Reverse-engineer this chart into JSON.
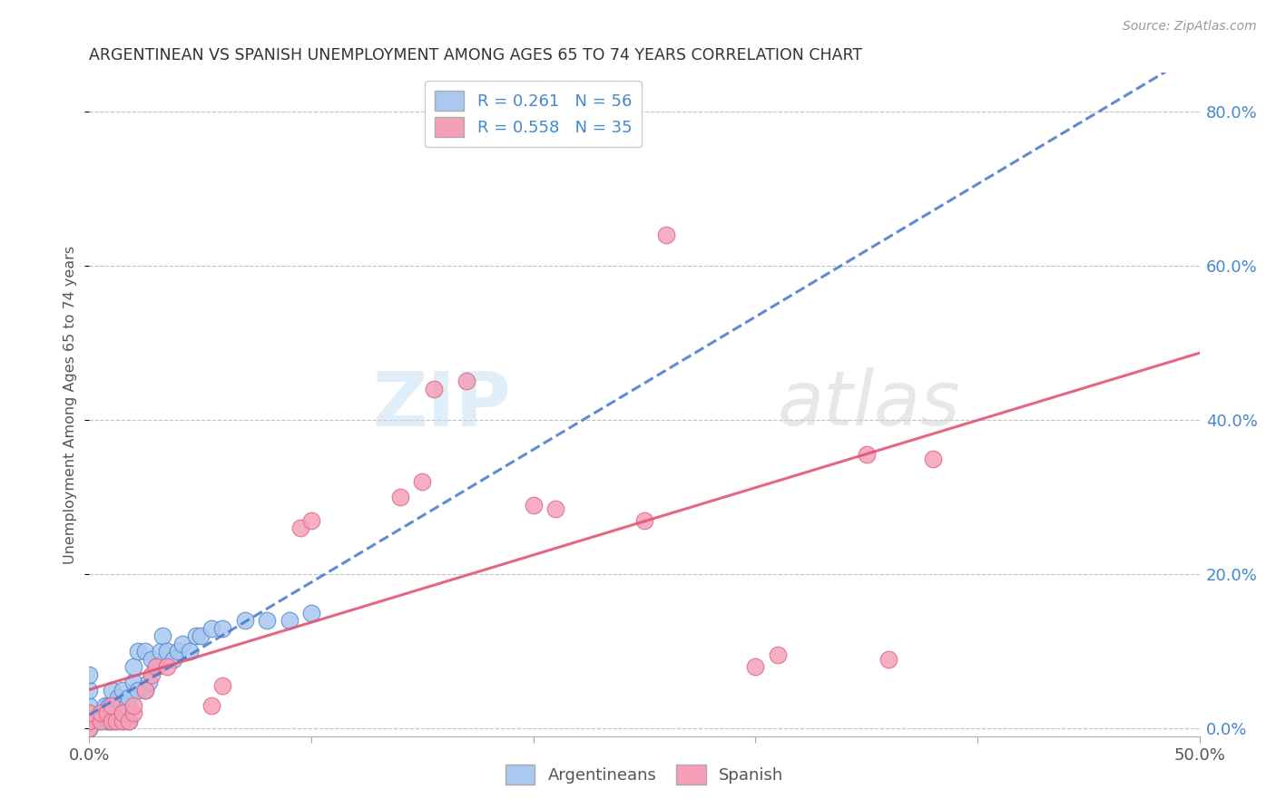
{
  "title": "ARGENTINEAN VS SPANISH UNEMPLOYMENT AMONG AGES 65 TO 74 YEARS CORRELATION CHART",
  "source": "Source: ZipAtlas.com",
  "ylabel": "Unemployment Among Ages 65 to 74 years",
  "ylabel_right_ticks": [
    "80.0%",
    "60.0%",
    "40.0%",
    "20.0%",
    "0.0%"
  ],
  "ylabel_right_vals": [
    0.8,
    0.6,
    0.4,
    0.2,
    0.0
  ],
  "xlim": [
    0.0,
    0.5
  ],
  "ylim": [
    -0.01,
    0.85
  ],
  "argentinean_color": "#aac8f0",
  "argentinean_edge": "#5588cc",
  "spanish_color": "#f5a0b8",
  "spanish_edge": "#dd6688",
  "R_argentinean": 0.261,
  "N_argentinean": 56,
  "R_spanish": 0.558,
  "N_spanish": 35,
  "line_argentinean_color": "#4477cc",
  "line_spanish_color": "#e05575",
  "argentinean_x": [
    0.0,
    0.0,
    0.0,
    0.0,
    0.0,
    0.0,
    0.0,
    0.0,
    0.0,
    0.0,
    0.005,
    0.005,
    0.007,
    0.007,
    0.008,
    0.008,
    0.009,
    0.009,
    0.01,
    0.01,
    0.01,
    0.01,
    0.012,
    0.012,
    0.013,
    0.013,
    0.015,
    0.015,
    0.016,
    0.017,
    0.018,
    0.018,
    0.02,
    0.02,
    0.022,
    0.022,
    0.025,
    0.025,
    0.027,
    0.028,
    0.03,
    0.032,
    0.033,
    0.035,
    0.038,
    0.04,
    0.042,
    0.045,
    0.048,
    0.05,
    0.055,
    0.06,
    0.07,
    0.08,
    0.09,
    0.1
  ],
  "argentinean_y": [
    0.0,
    0.0,
    0.0,
    0.01,
    0.01,
    0.02,
    0.02,
    0.03,
    0.05,
    0.07,
    0.01,
    0.02,
    0.02,
    0.03,
    0.01,
    0.025,
    0.01,
    0.03,
    0.01,
    0.02,
    0.03,
    0.05,
    0.01,
    0.03,
    0.02,
    0.04,
    0.01,
    0.05,
    0.02,
    0.03,
    0.01,
    0.04,
    0.06,
    0.08,
    0.05,
    0.1,
    0.05,
    0.1,
    0.06,
    0.09,
    0.08,
    0.1,
    0.12,
    0.1,
    0.09,
    0.1,
    0.11,
    0.1,
    0.12,
    0.12,
    0.13,
    0.13,
    0.14,
    0.14,
    0.14,
    0.15
  ],
  "spanish_x": [
    0.0,
    0.0,
    0.0,
    0.005,
    0.005,
    0.008,
    0.01,
    0.01,
    0.012,
    0.015,
    0.015,
    0.018,
    0.02,
    0.02,
    0.025,
    0.028,
    0.03,
    0.035,
    0.055,
    0.06,
    0.095,
    0.1,
    0.14,
    0.15,
    0.155,
    0.17,
    0.2,
    0.21,
    0.25,
    0.26,
    0.3,
    0.31,
    0.35,
    0.36,
    0.38
  ],
  "spanish_y": [
    0.0,
    0.01,
    0.02,
    0.01,
    0.02,
    0.02,
    0.01,
    0.03,
    0.01,
    0.01,
    0.02,
    0.01,
    0.02,
    0.03,
    0.05,
    0.07,
    0.08,
    0.08,
    0.03,
    0.055,
    0.26,
    0.27,
    0.3,
    0.32,
    0.44,
    0.45,
    0.29,
    0.285,
    0.27,
    0.64,
    0.08,
    0.095,
    0.355,
    0.09,
    0.35
  ]
}
